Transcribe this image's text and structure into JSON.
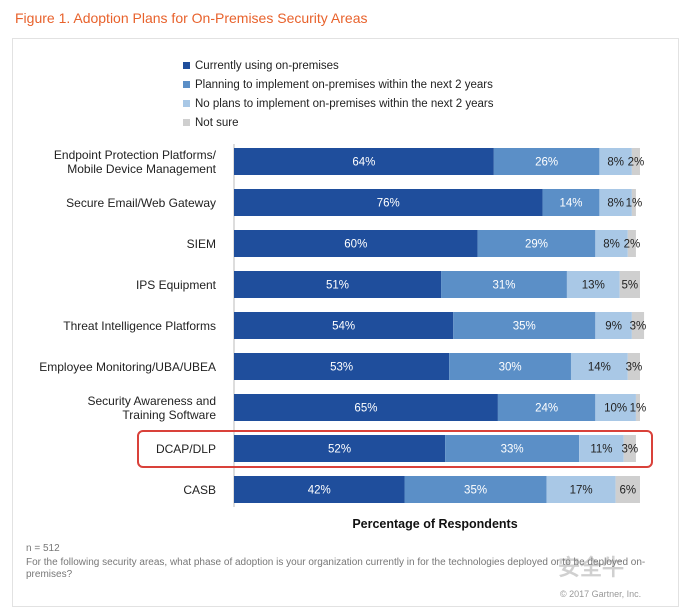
{
  "figure_title": "Figure 1. Adoption Plans for On-Premises Security Areas",
  "legend": [
    {
      "label": "Currently using on-premises",
      "color": "#1f4e9c"
    },
    {
      "label": "Planning to implement on-premises within the next 2 years",
      "color": "#5b8fc7"
    },
    {
      "label": "No plans to implement on-premises within the next 2 years",
      "color": "#a9c8e6"
    },
    {
      "label": "Not sure",
      "color": "#cfcfcf"
    }
  ],
  "chart_data": {
    "type": "bar",
    "orientation": "horizontal",
    "stacked": true,
    "categories": [
      "Endpoint Protection Platforms/\nMobile Device Management",
      "Secure Email/Web Gateway",
      "SIEM",
      "IPS Equipment",
      "Threat Intelligence Platforms",
      "Employee Monitoring/UBA/UBEA",
      "Security Awareness and\nTraining Software",
      "DCAP/DLP",
      "CASB"
    ],
    "series": [
      {
        "name": "Currently using on-premises",
        "values": [
          64,
          76,
          60,
          51,
          54,
          53,
          65,
          52,
          42
        ]
      },
      {
        "name": "Planning to implement on-premises within the next 2 years",
        "values": [
          26,
          14,
          29,
          31,
          35,
          30,
          24,
          33,
          35
        ]
      },
      {
        "name": "No plans to implement on-premises within the next 2 years",
        "values": [
          8,
          8,
          8,
          13,
          9,
          14,
          10,
          11,
          17
        ]
      },
      {
        "name": "Not sure",
        "values": [
          2,
          1,
          2,
          5,
          3,
          3,
          1,
          3,
          6
        ]
      }
    ],
    "value_suffix": "%",
    "xlabel": "Percentage of Respondents",
    "highlighted_category": "DCAP/DLP",
    "legend_position": "top"
  },
  "footnote_n": "n = 512",
  "footnote_question": "For the following security areas, what phase of adoption is your organization currently in for the technologies deployed or to be deployed on-premises?",
  "copyright": "© 2017 Gartner, Inc.",
  "watermark": "安全牛"
}
